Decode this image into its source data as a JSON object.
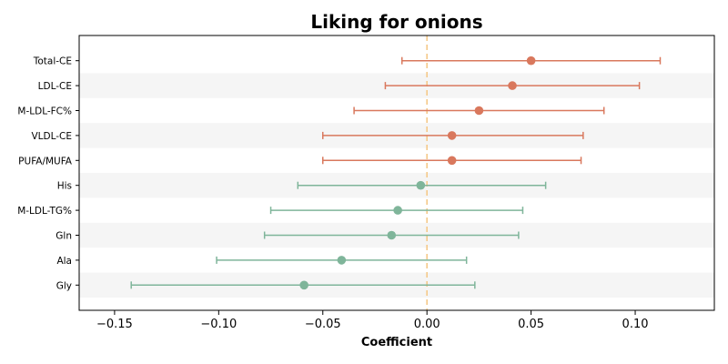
{
  "chart_data": {
    "type": "forest",
    "title": "Liking for onions",
    "xlabel": "Coefficient",
    "ylabel": "",
    "xlim": [
      -0.167,
      0.138
    ],
    "xticks": [
      -0.15,
      -0.1,
      -0.05,
      0.0,
      0.05,
      0.1
    ],
    "xtick_labels": [
      "−0.15",
      "−0.10",
      "−0.05",
      "0.00",
      "0.05",
      "0.10"
    ],
    "reference_line": 0.0,
    "colors": {
      "positive": "#d9785d",
      "negative": "#7fb59a",
      "reference_line": "#f5c98a",
      "band": "#f5f5f5"
    },
    "rows": [
      {
        "label": "Total-CE",
        "estimate": 0.05,
        "ci_low": -0.012,
        "ci_high": 0.112
      },
      {
        "label": "LDL-CE",
        "estimate": 0.041,
        "ci_low": -0.02,
        "ci_high": 0.102
      },
      {
        "label": "M-LDL-FC%",
        "estimate": 0.025,
        "ci_low": -0.035,
        "ci_high": 0.085
      },
      {
        "label": "VLDL-CE",
        "estimate": 0.012,
        "ci_low": -0.05,
        "ci_high": 0.075
      },
      {
        "label": "PUFA/MUFA",
        "estimate": 0.012,
        "ci_low": -0.05,
        "ci_high": 0.074
      },
      {
        "label": "His",
        "estimate": -0.003,
        "ci_low": -0.062,
        "ci_high": 0.057
      },
      {
        "label": "M-LDL-TG%",
        "estimate": -0.014,
        "ci_low": -0.075,
        "ci_high": 0.046
      },
      {
        "label": "Gln",
        "estimate": -0.017,
        "ci_low": -0.078,
        "ci_high": 0.044
      },
      {
        "label": "Ala",
        "estimate": -0.041,
        "ci_low": -0.101,
        "ci_high": 0.019
      },
      {
        "label": "Gly",
        "estimate": -0.059,
        "ci_low": -0.142,
        "ci_high": 0.023
      }
    ]
  }
}
